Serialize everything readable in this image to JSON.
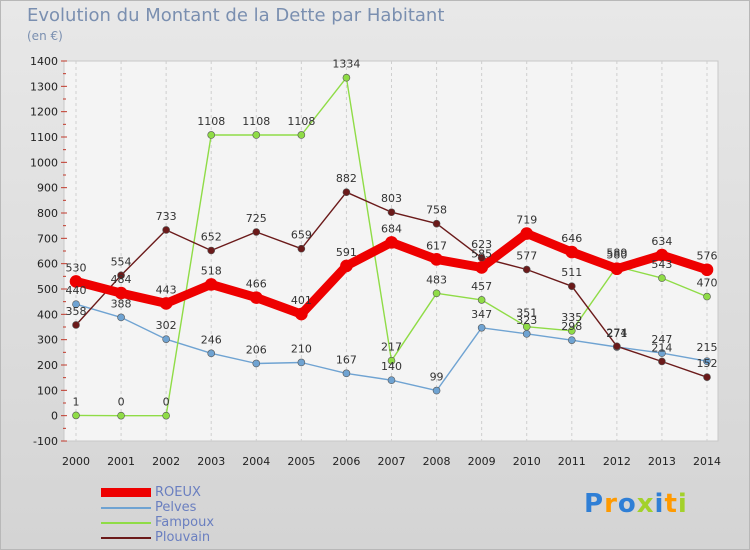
{
  "header": {
    "title": "Evolution du Montant de la Dette par Habitant",
    "unit": "(en €)"
  },
  "logo": {
    "text": "Proxiti",
    "colors": [
      "#2f7fd6",
      "#ff9a00",
      "#2f7fd6",
      "#a3d12a",
      "#2f7fd6",
      "#ff9a00",
      "#a3d12a"
    ]
  },
  "chart_data": {
    "type": "line",
    "x": [
      "2000",
      "2001",
      "2002",
      "2003",
      "2004",
      "2005",
      "2006",
      "2007",
      "2008",
      "2009",
      "2010",
      "2011",
      "2012",
      "2013",
      "2014"
    ],
    "ylim": [
      -100,
      1400
    ],
    "yticks": [
      -100,
      0,
      100,
      200,
      300,
      400,
      500,
      600,
      700,
      800,
      900,
      1000,
      1100,
      1200,
      1300,
      1400
    ],
    "grid": "vertical",
    "legend_position": "bottom-left",
    "series": [
      {
        "name": "ROEUX",
        "color": "#ee0000",
        "width": 9,
        "values": [
          530,
          484,
          443,
          518,
          466,
          401,
          591,
          684,
          617,
          585,
          719,
          646,
          580,
          634,
          576
        ],
        "labels": [
          "530",
          "484",
          "443",
          "518",
          "466",
          "401",
          "591",
          "684",
          "617",
          "585",
          "719",
          "646",
          "580",
          "634",
          "576"
        ]
      },
      {
        "name": "Pelves",
        "color": "#6fa3d2",
        "width": 1.4,
        "values": [
          440,
          388,
          302,
          246,
          206,
          210,
          167,
          140,
          99,
          347,
          323,
          298,
          271,
          247,
          215
        ],
        "labels": [
          "440",
          "388",
          "302",
          "246",
          "206",
          "210",
          "167",
          "140",
          "99",
          "347",
          "323",
          "298",
          "271",
          "247",
          "215"
        ]
      },
      {
        "name": "Fampoux",
        "color": "#8fdc46",
        "width": 1.4,
        "values": [
          1,
          0,
          0,
          1108,
          1108,
          1108,
          1334,
          217,
          483,
          457,
          351,
          335,
          589,
          543,
          470
        ],
        "labels": [
          "1",
          "0",
          "0",
          "1108",
          "1108",
          "1108",
          "1334",
          "217",
          "483",
          "457",
          "351",
          "335",
          "589",
          "543",
          "470"
        ]
      },
      {
        "name": "Plouvain",
        "color": "#6b1a1a",
        "width": 1.4,
        "values": [
          358,
          554,
          733,
          652,
          725,
          659,
          882,
          803,
          758,
          623,
          577,
          511,
          274,
          214,
          152
        ],
        "labels": [
          "358",
          "554",
          "733",
          "652",
          "725",
          "659",
          "882",
          "803",
          "758",
          "623",
          "577",
          "511",
          "274",
          "214",
          "152"
        ]
      }
    ]
  }
}
